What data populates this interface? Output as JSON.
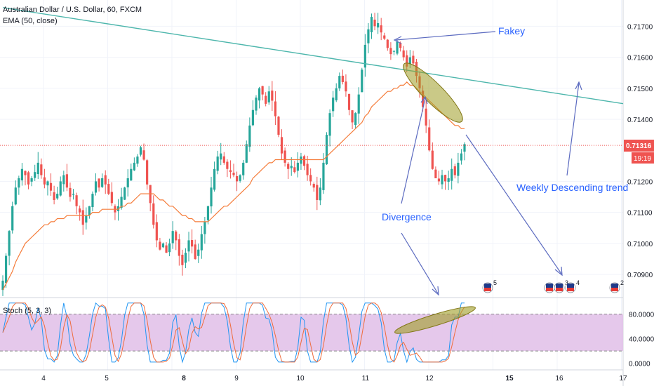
{
  "legend": {
    "main": "Australian Dollar / U.S. Dollar, 60, FXCM",
    "ema": "EMA (50, close)",
    "stoch": "Stoch (5, 3, 3)"
  },
  "price_axis": {
    "ticks": [
      "0.71700",
      "0.71600",
      "0.71500",
      "0.71400",
      "0.71200",
      "0.71100",
      "0.71000",
      "0.70900"
    ],
    "current_price": "0.71316",
    "countdown": "19:19"
  },
  "stoch_axis": {
    "ticks": [
      "80.0000",
      "40.0000",
      "0.0000"
    ]
  },
  "date_axis": {
    "labels": [
      "4",
      "5",
      "8",
      "9",
      "10",
      "11",
      "12",
      "15",
      "16",
      "17"
    ],
    "bold": [
      "8",
      "15"
    ]
  },
  "annotations": {
    "fakey": "Fakey",
    "weekly": "Weekly Descending trend",
    "divergence": "Divergence"
  },
  "events": [
    "5",
    "3",
    "4",
    "2"
  ],
  "colors": {
    "up": "#26a69a",
    "down": "#ef5350",
    "ema": "#f57c3a",
    "trendline": "#4db6ac",
    "annotation": "#2962ff",
    "stoch_band": "#e1bee7",
    "stoch_k": "#2196f3",
    "stoch_d": "#ef6c3c",
    "price_label": "#ef5350",
    "ellipse": "#9e9d24"
  },
  "chart_data": {
    "type": "candlestick",
    "symbol": "Australian Dollar / U.S. Dollar, 60, FXCM",
    "ylim": [
      0.7083,
      0.7178
    ],
    "x_labels": [
      "4",
      "5",
      "8",
      "9",
      "10",
      "11",
      "12",
      "15",
      "16",
      "17"
    ],
    "price_path": [
      0.7088,
      0.7096,
      0.7104,
      0.7112,
      0.7118,
      0.7121,
      0.7124,
      0.7122,
      0.7119,
      0.7121,
      0.7123,
      0.7126,
      0.7122,
      0.7119,
      0.712,
      0.7117,
      0.7114,
      0.7116,
      0.712,
      0.7122,
      0.7118,
      0.7115,
      0.7116,
      0.7112,
      0.711,
      0.7106,
      0.7109,
      0.7112,
      0.7116,
      0.712,
      0.7118,
      0.7121,
      0.7119,
      0.7116,
      0.7113,
      0.711,
      0.7112,
      0.7115,
      0.7118,
      0.7121,
      0.7124,
      0.7126,
      0.7128,
      0.7131,
      0.7127,
      0.7119,
      0.7113,
      0.7106,
      0.7101,
      0.7098,
      0.71,
      0.7097,
      0.71,
      0.7104,
      0.7101,
      0.7096,
      0.7093,
      0.7097,
      0.7101,
      0.7099,
      0.7095,
      0.7098,
      0.7103,
      0.7107,
      0.7112,
      0.7118,
      0.7124,
      0.7128,
      0.7129,
      0.7126,
      0.7124,
      0.7123,
      0.7122,
      0.712,
      0.7122,
      0.7126,
      0.7132,
      0.7138,
      0.7143,
      0.7147,
      0.715,
      0.7148,
      0.7145,
      0.7149,
      0.7146,
      0.7141,
      0.7135,
      0.7129,
      0.7126,
      0.7124,
      0.7125,
      0.7123,
      0.7126,
      0.7128,
      0.7125,
      0.7122,
      0.712,
      0.7118,
      0.7114,
      0.7118,
      0.7126,
      0.7135,
      0.7142,
      0.7147,
      0.715,
      0.7154,
      0.7152,
      0.7149,
      0.7143,
      0.7139,
      0.7142,
      0.7148,
      0.7156,
      0.7164,
      0.7169,
      0.7173,
      0.717,
      0.7171,
      0.7168,
      0.7166,
      0.7163,
      0.7161,
      0.7162,
      0.7165,
      0.7163,
      0.716,
      0.7157,
      0.716,
      0.7158,
      0.7154,
      0.715,
      0.7144,
      0.7138,
      0.713,
      0.7124,
      0.7121,
      0.712,
      0.7122,
      0.712,
      0.7121,
      0.7124,
      0.7122,
      0.7126,
      0.7129,
      0.7132
    ],
    "ema": [
      0.7085,
      0.7087,
      0.7089,
      0.7091,
      0.7094,
      0.7096,
      0.7098,
      0.71,
      0.7101,
      0.7102,
      0.7103,
      0.7104,
      0.7105,
      0.7106,
      0.7106,
      0.7107,
      0.7107,
      0.7108,
      0.7108,
      0.7108,
      0.7109,
      0.7109,
      0.7109,
      0.7109,
      0.7109,
      0.7109,
      0.7109,
      0.7109,
      0.711,
      0.711,
      0.711,
      0.7111,
      0.7111,
      0.7111,
      0.7111,
      0.7111,
      0.7111,
      0.7112,
      0.7112,
      0.7113,
      0.7113,
      0.7114,
      0.7115,
      0.7116,
      0.7116,
      0.7116,
      0.7116,
      0.7116,
      0.7115,
      0.7114,
      0.7114,
      0.7113,
      0.7112,
      0.7112,
      0.7111,
      0.711,
      0.7109,
      0.7109,
      0.7108,
      0.7108,
      0.7107,
      0.7107,
      0.7107,
      0.7107,
      0.7107,
      0.7108,
      0.7109,
      0.711,
      0.7111,
      0.7112,
      0.7112,
      0.7113,
      0.7114,
      0.7115,
      0.7116,
      0.7117,
      0.7118,
      0.7119,
      0.7121,
      0.7122,
      0.7123,
      0.7124,
      0.7125,
      0.7126,
      0.7126,
      0.7127,
      0.7127,
      0.7127,
      0.7127,
      0.7127,
      0.7127,
      0.7127,
      0.7127,
      0.7127,
      0.7127,
      0.7127,
      0.7127,
      0.7127,
      0.7127,
      0.7127,
      0.7127,
      0.7128,
      0.7129,
      0.713,
      0.7131,
      0.7132,
      0.7133,
      0.7134,
      0.7135,
      0.7136,
      0.7137,
      0.7138,
      0.7139,
      0.7141,
      0.7142,
      0.7144,
      0.7145,
      0.7146,
      0.7147,
      0.7148,
      0.7149,
      0.7149,
      0.715,
      0.715,
      0.7151,
      0.7151,
      0.7152,
      0.7151,
      0.7151,
      0.715,
      0.7149,
      0.7148,
      0.7147,
      0.7146,
      0.7145,
      0.7144,
      0.7143,
      0.7142,
      0.7141,
      0.714,
      0.7139,
      0.7138,
      0.7138,
      0.7137,
      0.7137
    ],
    "trendline": [
      {
        "x": 0,
        "y": 0.7176
      },
      {
        "x": 150,
        "y": 0.7152
      }
    ],
    "stoch_ylim": [
      -5,
      100
    ],
    "stoch_band": [
      20,
      80
    ],
    "stoch_k_seed": 0.62
  }
}
